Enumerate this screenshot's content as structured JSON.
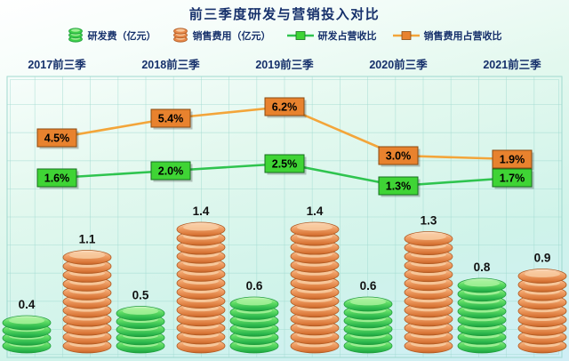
{
  "title": "前三季度研发与营销投入对比",
  "legend": [
    {
      "label": "研发费（亿元）",
      "marker": "coin",
      "color": "#3fcf4a"
    },
    {
      "label": "销售费用（亿元）",
      "marker": "coin",
      "color": "#e8894a"
    },
    {
      "label": "研发占营收比",
      "marker": "line",
      "color": "#2fc44f"
    },
    {
      "label": "销售费用占营收比",
      "marker": "line",
      "color": "#f3a53a"
    }
  ],
  "chart_data": {
    "type": "bar",
    "title": "前三季度研发与营销投入对比",
    "categories": [
      "2017前三季",
      "2018前三季",
      "2019前三季",
      "2020前三季",
      "2021前三季"
    ],
    "series": [
      {
        "name": "研发费（亿元）",
        "kind": "bar",
        "unit": "亿元",
        "values": [
          0.4,
          0.5,
          0.6,
          0.6,
          0.8
        ]
      },
      {
        "name": "销售费用（亿元）",
        "kind": "bar",
        "unit": "亿元",
        "values": [
          1.1,
          1.4,
          1.4,
          1.3,
          0.9
        ]
      },
      {
        "name": "研发占营收比",
        "kind": "line",
        "values_percent": [
          1.6,
          2.0,
          2.5,
          1.3,
          1.7
        ],
        "labels": [
          "1.6%",
          "2.0%",
          "2.5%",
          "1.3%",
          "1.7%"
        ]
      },
      {
        "name": "销售费用占营收比",
        "kind": "line",
        "values_percent": [
          4.5,
          5.4,
          6.2,
          3.0,
          1.9
        ],
        "labels": [
          "4.5%",
          "5.4%",
          "6.2%",
          "3.0%",
          "1.9%"
        ]
      }
    ],
    "bar_value_labels": [
      [
        "0.4",
        "0.5",
        "0.6",
        "0.6",
        "0.8"
      ],
      [
        "1.1",
        "1.4",
        "1.4",
        "1.3",
        "0.9"
      ]
    ],
    "legend_position": "top",
    "grid": true,
    "axes_visible": false
  },
  "colors": {
    "title": "#16306b",
    "year_label": "#16306b",
    "legend_text": "#16306b",
    "bar_green": "#3fcf4a",
    "bar_green_dark": "#1f9e3c",
    "bar_green_light": "#a8f29b",
    "bar_orange": "#e8894a",
    "bar_orange_dark": "#b05a22",
    "bar_orange_light": "#f8cda2",
    "line_green": "#2fc44f",
    "line_orange": "#f3a53a",
    "box_green": "#3fd435",
    "box_green_border": "#156f1f",
    "box_orange": "#e8822e",
    "box_orange_border": "#8a4a10",
    "grid": "#9ed9cf",
    "value_label": "#111111"
  }
}
